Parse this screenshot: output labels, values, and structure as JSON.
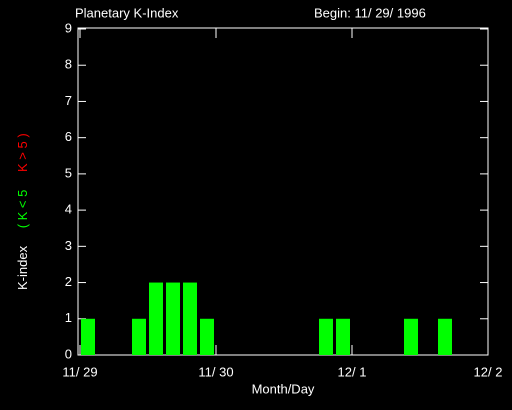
{
  "chart_data": {
    "type": "bar",
    "title": "Planetary K-Index",
    "subtitle": "Begin: 11/ 29/ 1996",
    "x_label": "Month/Day",
    "y_label": "K-index",
    "legend": [
      {
        "name": "( K < 5",
        "color": "#00ff00"
      },
      {
        "name": "K > 5 )",
        "color": "#ff0000"
      }
    ],
    "x": [
      0,
      0.125,
      0.25,
      0.375,
      0.5,
      0.625,
      0.75,
      0.875,
      1,
      1.125,
      1.25,
      1.375,
      1.5,
      1.625,
      1.75,
      1.875,
      2,
      2.125,
      2.25,
      2.375,
      2.5,
      2.625,
      2.75,
      2.875
    ],
    "values": [
      1,
      0,
      0,
      1,
      2,
      2,
      2,
      1,
      0,
      0,
      0,
      0,
      0,
      0,
      1,
      1,
      0,
      0,
      0,
      1,
      0,
      1,
      0,
      0
    ],
    "color": "#00ff00",
    "xlim": [
      0,
      3
    ],
    "xticks": [
      {
        "value": 0,
        "label": "11/ 29"
      },
      {
        "value": 1,
        "label": "11/ 30"
      },
      {
        "value": 2,
        "label": "12/ 1"
      },
      {
        "value": 3,
        "label": "12/ 2"
      }
    ],
    "ylim": [
      0,
      9
    ],
    "yticks": [
      0,
      1,
      2,
      3,
      4,
      5,
      6,
      7,
      8,
      9
    ]
  }
}
